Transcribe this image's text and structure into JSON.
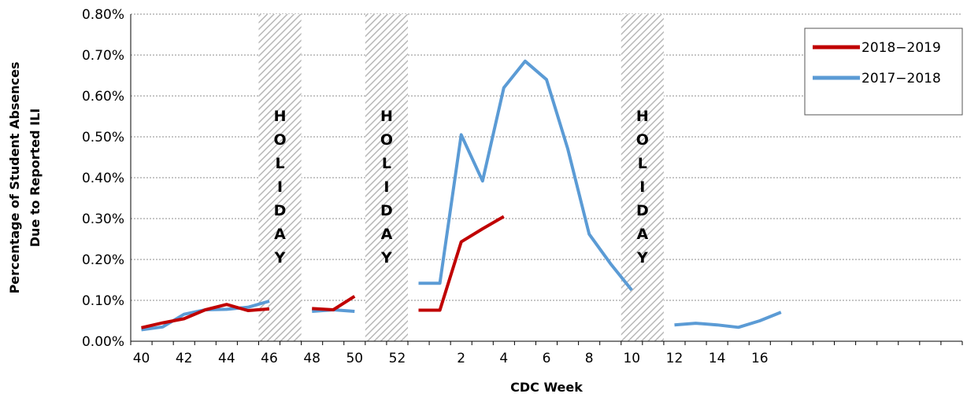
{
  "chart_data": {
    "type": "line",
    "title": "",
    "xlabel": "CDC Week",
    "ylabel": "Percentage of Student Absences\nDue to Reported ILI",
    "ylim": [
      0,
      0.8
    ],
    "y_ticks": [
      "0.00%",
      "0.10%",
      "0.20%",
      "0.30%",
      "0.40%",
      "0.50%",
      "0.60%",
      "0.70%",
      "0.80%"
    ],
    "x_ticks": [
      "40",
      "42",
      "44",
      "46",
      "48",
      "50",
      "52",
      "2",
      "4",
      "6",
      "8",
      "10",
      "12",
      "14",
      "16"
    ],
    "grid": "horizontal dotted",
    "legend_position": "top-right",
    "holiday_text": "HOLIDAY",
    "holiday_weeks": [
      [
        46,
        47
      ],
      [
        51,
        52
      ],
      [
        10,
        11
      ]
    ],
    "series": [
      {
        "name": "2018−2019",
        "color": "#C00000",
        "points": [
          [
            "40",
            0.033
          ],
          [
            "41",
            0.045
          ],
          [
            "42",
            0.055
          ],
          [
            "43",
            0.077
          ],
          [
            "44",
            0.09
          ],
          [
            "45",
            0.075
          ],
          [
            "46",
            0.079
          ],
          [
            "48",
            0.08
          ],
          [
            "49",
            0.077
          ],
          [
            "50",
            0.11
          ],
          [
            "53",
            0.076
          ],
          [
            "1",
            0.076
          ],
          [
            "2",
            0.243
          ],
          [
            "3",
            0.275
          ],
          [
            "4",
            0.305
          ]
        ]
      },
      {
        "name": "2017−2018",
        "color": "#5B9BD5",
        "points": [
          [
            "40",
            0.028
          ],
          [
            "41",
            0.035
          ],
          [
            "42",
            0.066
          ],
          [
            "43",
            0.077
          ],
          [
            "44",
            0.078
          ],
          [
            "45",
            0.083
          ],
          [
            "46",
            0.098
          ],
          [
            "48",
            0.073
          ],
          [
            "49",
            0.077
          ],
          [
            "50",
            0.073
          ],
          [
            "53",
            0.142
          ],
          [
            "1",
            0.142
          ],
          [
            "2",
            0.505
          ],
          [
            "3",
            0.392
          ],
          [
            "4",
            0.62
          ],
          [
            "5",
            0.685
          ],
          [
            "6",
            0.64
          ],
          [
            "7",
            0.47
          ],
          [
            "8",
            0.262
          ],
          [
            "9",
            0.19
          ],
          [
            "10",
            0.125
          ],
          [
            "12",
            0.04
          ],
          [
            "13",
            0.044
          ],
          [
            "14",
            0.04
          ],
          [
            "15",
            0.034
          ],
          [
            "16",
            0.05
          ],
          [
            "17",
            0.071
          ]
        ]
      }
    ]
  }
}
